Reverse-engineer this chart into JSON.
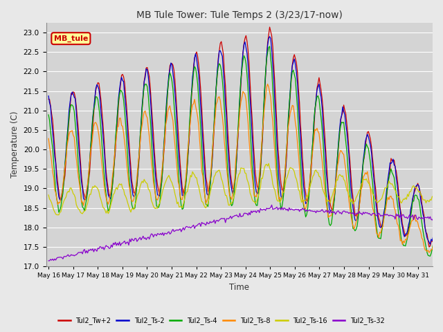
{
  "title": "MB Tule Tower: Tule Temps 2 (3/23/17-now)",
  "xlabel": "Time",
  "ylabel": "Temperature (C)",
  "ylim": [
    17.0,
    23.25
  ],
  "yticks": [
    17.0,
    17.5,
    18.0,
    18.5,
    19.0,
    19.5,
    20.0,
    20.5,
    21.0,
    21.5,
    22.0,
    22.5,
    23.0
  ],
  "background_color": "#e8e8e8",
  "plot_bg_color": "#d4d4d4",
  "grid_color": "#ffffff",
  "legend_box_label": "MB_tule",
  "series": [
    {
      "label": "Tul2_Tw+2",
      "color": "#cc0000"
    },
    {
      "label": "Tul2_Ts-2",
      "color": "#0000cc"
    },
    {
      "label": "Tul2_Ts-4",
      "color": "#00aa00"
    },
    {
      "label": "Tul2_Ts-8",
      "color": "#ff8800"
    },
    {
      "label": "Tul2_Ts-16",
      "color": "#cccc00"
    },
    {
      "label": "Tul2_Ts-32",
      "color": "#8800cc"
    }
  ],
  "x_tick_labels": [
    "May 16",
    "May 17",
    "May 18",
    "May 19",
    "May 20",
    "May 21",
    "May 22",
    "May 23",
    "May 24",
    "May 25",
    "May 26",
    "May 27",
    "May 28",
    "May 29",
    "May 30",
    "May 31"
  ]
}
